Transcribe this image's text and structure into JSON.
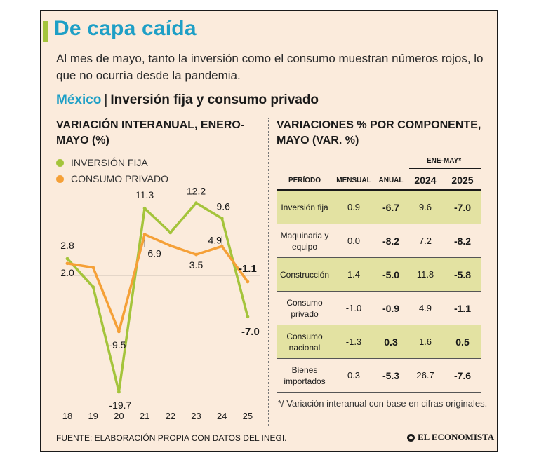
{
  "header": {
    "title": "De capa caída",
    "subtitle": "Al mes de mayo, tanto la inversión como el consumo muestran números rojos, lo que no ocurría desde la pandemia.",
    "country": "México",
    "separator": "|",
    "topic": "Inversión fija y consumo privado"
  },
  "left_heading": "VARIACIÓN INTERANUAL, ENERO-MAYO (%)",
  "right_heading": "VARIACIONES % POR COMPONENTE, MAYO (VAR. %)",
  "legend": {
    "inversion": "INVERSIÓN FIJA",
    "consumo": "CONSUMO PRIVADO"
  },
  "colors": {
    "inversion": "#a4c43b",
    "consumo": "#f5a037",
    "accent": "#1e9fc6",
    "card": "#fbebdc",
    "highlight": "#e3e2a2"
  },
  "chart_data": {
    "type": "line",
    "categories": [
      "18",
      "19",
      "20",
      "21",
      "22",
      "23",
      "24",
      "25"
    ],
    "series": [
      {
        "name": "INVERSIÓN FIJA",
        "values": [
          2.8,
          -2.0,
          -19.7,
          11.3,
          7.2,
          12.2,
          9.6,
          -7.0
        ]
      },
      {
        "name": "CONSUMO PRIVADO",
        "values": [
          2.0,
          1.3,
          -9.5,
          6.9,
          5.0,
          3.5,
          4.9,
          -1.1
        ]
      }
    ],
    "ylim": [
      -21,
      15
    ],
    "zero_line": true,
    "labels": [
      {
        "series": 0,
        "index": 0,
        "text": "2.8",
        "bold": false
      },
      {
        "series": 1,
        "index": 0,
        "text": "2.0",
        "bold": false
      },
      {
        "series": 1,
        "index": 2,
        "text": "-9.5",
        "bold": false
      },
      {
        "series": 0,
        "index": 2,
        "text": "-19.7",
        "bold": false
      },
      {
        "series": 0,
        "index": 3,
        "text": "11.3",
        "bold": false
      },
      {
        "series": 1,
        "index": 3,
        "text": "6.9",
        "bold": false
      },
      {
        "series": 0,
        "index": 5,
        "text": "12.2",
        "bold": false
      },
      {
        "series": 1,
        "index": 5,
        "text": "3.5",
        "bold": false
      },
      {
        "series": 0,
        "index": 6,
        "text": "9.6",
        "bold": false
      },
      {
        "series": 1,
        "index": 6,
        "text": "4.9",
        "bold": false
      },
      {
        "series": 1,
        "index": 7,
        "text": "-1.1",
        "bold": true
      },
      {
        "series": 0,
        "index": 7,
        "text": "-7.0",
        "bold": true
      }
    ]
  },
  "table": {
    "ene_may": "ENE-MAY*",
    "columns": [
      "PERÍODO",
      "MENSUAL",
      "ANUAL",
      "2024",
      "2025"
    ],
    "rows": [
      {
        "label": "Inversión fija",
        "mensual": "0.9",
        "anual": "-6.7",
        "y2024": "9.6",
        "y2025": "-7.0",
        "highlight": true
      },
      {
        "label": "Maquinaria y equipo",
        "mensual": "0.0",
        "anual": "-8.2",
        "y2024": "7.2",
        "y2025": "-8.2",
        "highlight": false
      },
      {
        "label": "Construcción",
        "mensual": "1.4",
        "anual": "-5.0",
        "y2024": "11.8",
        "y2025": "-5.8",
        "highlight": true
      },
      {
        "label": "Consumo privado",
        "mensual": "-1.0",
        "anual": "-0.9",
        "y2024": "4.9",
        "y2025": "-1.1",
        "highlight": false
      },
      {
        "label": "Consumo nacional",
        "mensual": "-1.3",
        "anual": "0.3",
        "y2024": "1.6",
        "y2025": "0.5",
        "highlight": true
      },
      {
        "label": "Bienes importados",
        "mensual": "0.3",
        "anual": "-5.3",
        "y2024": "26.7",
        "y2025": "-7.6",
        "highlight": false
      }
    ]
  },
  "footnote": "*/ Variación interanual con base en cifras originales.",
  "source": "FUENTE: ELABORACIÓN PROPIA CON DATOS DEL INEGI.",
  "brand": "EL ECONOMISTA"
}
